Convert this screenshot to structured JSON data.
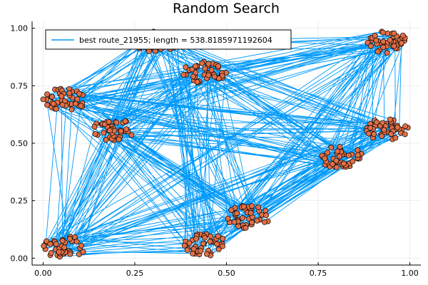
{
  "chart_data": {
    "type": "scatter",
    "title": "Random Search",
    "xlabel": "",
    "ylabel": "",
    "xlim": [
      -0.03,
      1.03
    ],
    "ylim": [
      -0.03,
      1.03
    ],
    "x_ticks": [
      "0.00",
      "0.25",
      "0.50",
      "0.75",
      "1.00"
    ],
    "y_ticks": [
      "0.00",
      "0.25",
      "0.50",
      "0.75",
      "1.00"
    ],
    "x_tick_values": [
      0,
      0.25,
      0.5,
      0.75,
      1.0
    ],
    "y_tick_values": [
      0,
      0.25,
      0.5,
      0.75,
      1.0
    ],
    "grid": true,
    "legend_position": "top-left",
    "series": [
      {
        "name": "best route_21955; length = 538.8185971192604",
        "kind": "line",
        "color": "#009AFA"
      },
      {
        "kind": "scatter",
        "color": "#E26F46",
        "clusters": [
          {
            "x": 0.06,
            "y": 0.05
          },
          {
            "x": 0.44,
            "y": 0.06
          },
          {
            "x": 0.56,
            "y": 0.18
          },
          {
            "x": 0.81,
            "y": 0.44
          },
          {
            "x": 0.94,
            "y": 0.56
          },
          {
            "x": 0.19,
            "y": 0.56
          },
          {
            "x": 0.06,
            "y": 0.69
          },
          {
            "x": 0.44,
            "y": 0.81
          },
          {
            "x": 0.31,
            "y": 0.94
          },
          {
            "x": 0.94,
            "y": 0.94
          }
        ]
      }
    ]
  }
}
